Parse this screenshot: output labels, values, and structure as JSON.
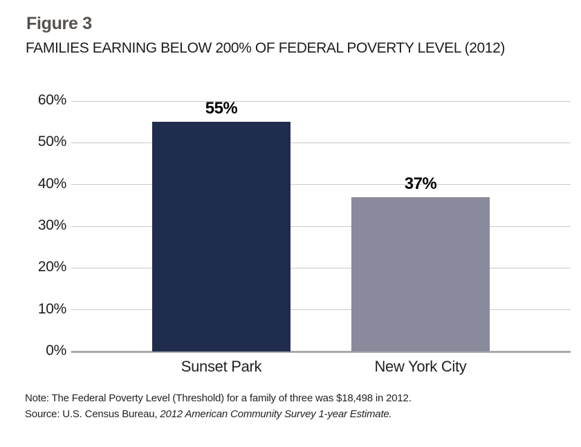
{
  "figure": {
    "label": "Figure 3",
    "title": "FAMILIES EARNING BELOW 200% OF FEDERAL POVERTY LEVEL (2012)"
  },
  "chart_data": {
    "type": "bar",
    "title": "FAMILIES EARNING BELOW 200% OF FEDERAL POVERTY LEVEL (2012)",
    "categories": [
      "Sunset Park",
      "New York City"
    ],
    "values": [
      55,
      37
    ],
    "data_labels": [
      "55%",
      "37%"
    ],
    "bar_colors": [
      "#1f2c4e",
      "#8a8a9d"
    ],
    "xlabel": "",
    "ylabel": "",
    "ylim": [
      0,
      60
    ],
    "yticks": [
      {
        "value": 60,
        "label": "60%"
      },
      {
        "value": 50,
        "label": "50%"
      },
      {
        "value": 40,
        "label": "40%"
      },
      {
        "value": 30,
        "label": "30%"
      },
      {
        "value": 20,
        "label": "20%"
      },
      {
        "value": 10,
        "label": "10%"
      },
      {
        "value": 0,
        "label": "0%"
      }
    ],
    "grid": true,
    "legend_position": "none"
  },
  "notes": {
    "note": "Note: The Federal Poverty Level (Threshold) for a family of three was $18,498 in 2012.",
    "source_prefix": "Source: U.S. Census Bureau, ",
    "source_italic": "2012 American Community Survey 1-year Estimate."
  },
  "colors": {
    "figure_label": "#56514d",
    "body_text": "#231f20",
    "gridline": "#c9c9c9",
    "axis": "#a9a9a9",
    "bar_sunset_park": "#1f2c4e",
    "bar_new_york_city": "#8a8a9d"
  }
}
